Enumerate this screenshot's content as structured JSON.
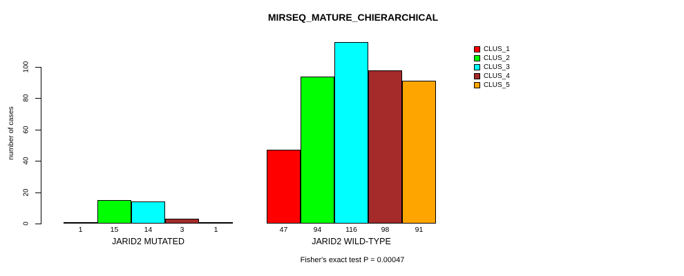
{
  "figure": {
    "background": "#ffffff",
    "text_color": "#000000"
  },
  "chart_data": {
    "type": "bar",
    "title": "MIRSEQ_MATURE_CHIERARCHICAL",
    "xlabel": "",
    "ylabel": "number of cases",
    "annotation": "Fisher's exact test P = 0.00047",
    "ylim": [
      0,
      116
    ],
    "yticks": [
      0,
      20,
      40,
      60,
      80,
      100
    ],
    "grid": false,
    "legend_position": "top-right",
    "bar_value_labels": true,
    "categories": [
      "JARID2 MUTATED",
      "JARID2 WILD-TYPE"
    ],
    "series": [
      {
        "name": "CLUS_1",
        "color": "#FF0000",
        "values": [
          1,
          47
        ]
      },
      {
        "name": "CLUS_2",
        "color": "#00FF00",
        "values": [
          15,
          94
        ]
      },
      {
        "name": "CLUS_3",
        "color": "#00FFFF",
        "values": [
          14,
          116
        ]
      },
      {
        "name": "CLUS_4",
        "color": "#A52A2A",
        "values": [
          3,
          98
        ]
      },
      {
        "name": "CLUS_5",
        "color": "#FFA500",
        "values": [
          1,
          91
        ]
      }
    ]
  }
}
